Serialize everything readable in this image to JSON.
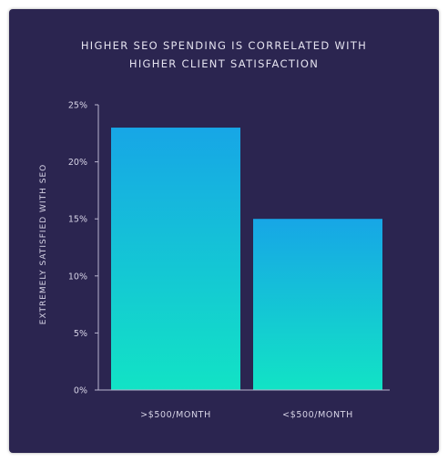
{
  "chart_data": {
    "type": "bar",
    "title": [
      "HIGHER SEO SPENDING IS CORRELATED WITH",
      "HIGHER CLIENT SATISFACTION"
    ],
    "ylabel": "EXTREMELY SATISFIED WITH SEO",
    "xlabel": "",
    "categories": [
      ">$500/MONTH",
      "<$500/MONTH"
    ],
    "values": [
      23,
      15
    ],
    "ylim": [
      0,
      25
    ],
    "yticks": [
      "0%",
      "5%",
      "10%",
      "15%",
      "20%",
      "25%"
    ],
    "grid": false,
    "legend": "none",
    "colors": {
      "background": "#2b2550",
      "bar_top": "#17a6e6",
      "bar_bottom": "#12e3c5",
      "text": "#d7d4e6",
      "axis": "#b9b5cf"
    }
  }
}
